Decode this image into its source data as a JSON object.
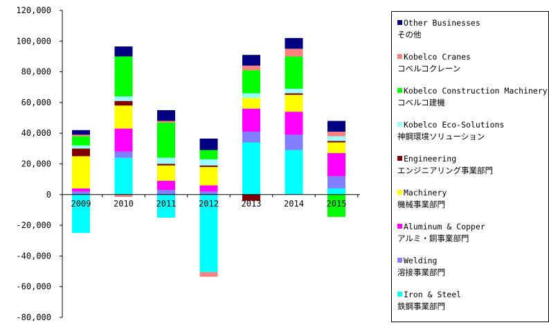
{
  "chart_data": {
    "type": "bar",
    "stacked": true,
    "categories": [
      "2009",
      "2010",
      "2011",
      "2012",
      "2013",
      "2014",
      "2015"
    ],
    "ylim": [
      -80000,
      120000
    ],
    "yticks": [
      "120,000",
      "100,000",
      "80,000",
      "60,000",
      "40,000",
      "20,000",
      "0",
      "-20,000",
      "-40,000",
      "-60,000",
      "-80,000"
    ],
    "ytick_values": [
      120000,
      100000,
      80000,
      60000,
      40000,
      20000,
      0,
      -20000,
      -40000,
      -60000,
      -80000
    ],
    "legend_position": "right",
    "series": [
      {
        "name": "Iron & Steel",
        "name_ja": "鉄鋼事業部門",
        "color": "#00ffff",
        "values": [
          -25000,
          24000,
          -15000,
          -50500,
          34000,
          29000,
          4000
        ]
      },
      {
        "name": "Welding",
        "name_ja": "溶接事業部門",
        "color": "#8080ff",
        "values": [
          2000,
          4000,
          3000,
          2000,
          7000,
          10000,
          8000
        ]
      },
      {
        "name": "Aluminum & Copper",
        "name_ja": "アルミ・銅事業部門",
        "color": "#ff00ff",
        "values": [
          2000,
          15000,
          6000,
          4000,
          15000,
          15000,
          15000
        ]
      },
      {
        "name": "Machinery",
        "name_ja": "機械事業部門",
        "color": "#ffff00",
        "values": [
          21000,
          15000,
          10000,
          12000,
          7000,
          11000,
          7000
        ]
      },
      {
        "name": "Engineering",
        "name_ja": "エンジニアリング事業部門",
        "color": "#800000",
        "values": [
          5000,
          3000,
          1000,
          1000,
          -4000,
          1000,
          1000
        ]
      },
      {
        "name": "Kobelco Eco-Solutions",
        "name_ja": "神鋼環境ソリューション",
        "color": "#99ffff",
        "values": [
          2000,
          3000,
          4000,
          4000,
          3000,
          3000,
          3000
        ]
      },
      {
        "name": "Kobelco Construction Machinery",
        "name_ja": "コベルコ建機",
        "color": "#00ff00",
        "values": [
          6000,
          26000,
          23000,
          6000,
          15000,
          21000,
          -14500
        ]
      },
      {
        "name": "Kobelco Cranes",
        "name_ja": "コベルコクレーン",
        "color": "#ff8080",
        "values": [
          1000,
          -1500,
          1000,
          -3000,
          3000,
          5000,
          3000
        ]
      },
      {
        "name": "Other Businesses",
        "name_ja": "その他",
        "color": "#000080",
        "values": [
          3000,
          6500,
          7000,
          7500,
          7000,
          7000,
          7000
        ]
      }
    ]
  }
}
